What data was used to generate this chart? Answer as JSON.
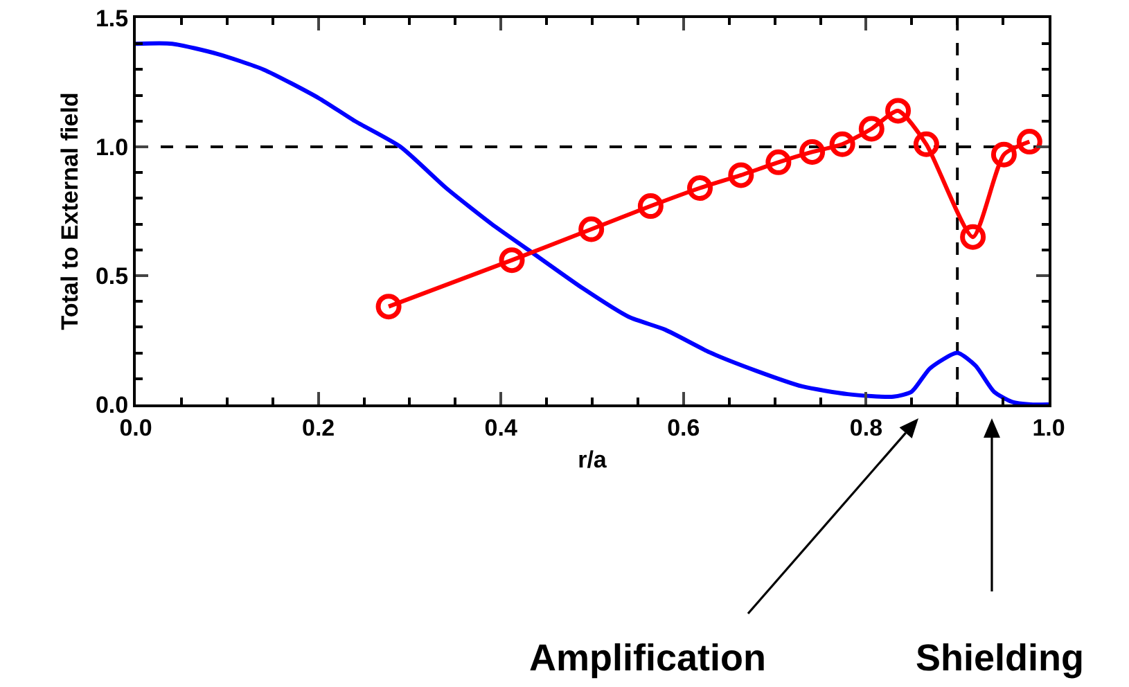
{
  "chart_data": {
    "type": "line",
    "xlabel": "r/a",
    "ylabel": "Total to External field",
    "xlim": [
      0,
      1
    ],
    "ylim": [
      0,
      1.5
    ],
    "xticks": [
      {
        "value": 0,
        "label": "0.0"
      },
      {
        "value": 0.2,
        "label": "0.2"
      },
      {
        "value": 0.4,
        "label": "0.4"
      },
      {
        "value": 0.6,
        "label": "0.6"
      },
      {
        "value": 0.8,
        "label": "0.8"
      },
      {
        "value": 1,
        "label": "1.0"
      }
    ],
    "yticks": [
      {
        "value": 0,
        "label": "0.0"
      },
      {
        "value": 0.5,
        "label": "0.5"
      },
      {
        "value": 1,
        "label": "1.0"
      },
      {
        "value": 1.5,
        "label": "1.5"
      }
    ],
    "series": [
      {
        "color": "#0000ff",
        "marker": "none",
        "x": [
          0,
          0.04,
          0.09,
          0.14,
          0.2,
          0.24,
          0.29,
          0.34,
          0.39,
          0.43,
          0.49,
          0.54,
          0.58,
          0.63,
          0.68,
          0.73,
          0.78,
          0.83,
          0.85,
          0.87,
          0.9,
          0.92,
          0.94,
          0.96,
          0.98,
          1
        ],
        "values": [
          1.4,
          1.4,
          1.36,
          1.3,
          1.19,
          1.1,
          1.0,
          0.84,
          0.7,
          0.6,
          0.45,
          0.34,
          0.29,
          0.2,
          0.13,
          0.07,
          0.04,
          0.03,
          0.05,
          0.14,
          0.2,
          0.15,
          0.05,
          0.01,
          0,
          0
        ]
      },
      {
        "color": "#ff0000",
        "marker": "circle",
        "x": [
          0.277,
          0.412,
          0.499,
          0.564,
          0.618,
          0.663,
          0.704,
          0.741,
          0.774,
          0.806,
          0.835,
          0.866,
          0.917,
          0.951,
          0.979
        ],
        "values": [
          0.38,
          0.56,
          0.68,
          0.77,
          0.84,
          0.89,
          0.94,
          0.98,
          1.01,
          1.07,
          1.14,
          1.01,
          0.65,
          0.97,
          1.02
        ]
      }
    ],
    "ref_lines": [
      {
        "axis": "y",
        "value": 1,
        "line_style": "dashed",
        "color": "#000000"
      },
      {
        "axis": "x",
        "value": 0.9,
        "line_style": "dashed",
        "color": "#000000"
      }
    ],
    "annotations": [
      "Amplification",
      "Shielding"
    ]
  }
}
